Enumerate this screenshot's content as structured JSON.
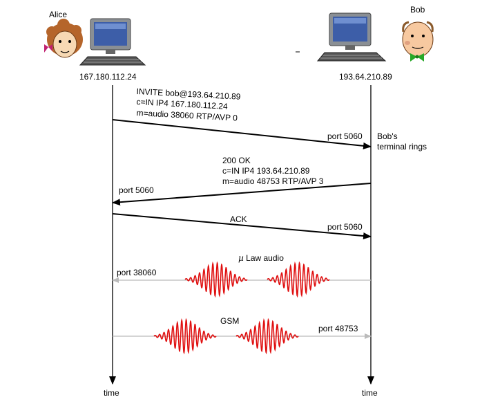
{
  "participants": {
    "alice": {
      "name": "Alice",
      "ip": "167.180.112.24"
    },
    "bob": {
      "name": "Bob",
      "ip": "193.64.210.89"
    }
  },
  "messages": {
    "invite": {
      "lines": [
        "INVITE bob@193.64.210.89",
        "c=IN IP4 167.180.112.24",
        "m=audio 38060 RTP/AVP 0"
      ],
      "port": "port 5060"
    },
    "bob_note": [
      "Bob's",
      "terminal rings"
    ],
    "ok": {
      "lines": [
        "200 OK",
        "c=IN IP4 193.64.210.89",
        "m=audio 48753 RTP/AVP 3"
      ],
      "port": "port 5060"
    },
    "ack": {
      "label": "ACK",
      "port": "port 5060"
    },
    "mulaw": {
      "mu": "µ",
      "label": "Law audio",
      "port": "port 38060"
    },
    "gsm": {
      "label": "GSM",
      "port": "port 48753"
    }
  },
  "timeline": {
    "left_label": "time",
    "right_label": "time"
  },
  "colors": {
    "signal": "#000000",
    "media_arrow": "#bbbbbb",
    "wave": "#e01010"
  },
  "icons": [
    "alice-icon",
    "bob-icon",
    "computer-icon"
  ]
}
